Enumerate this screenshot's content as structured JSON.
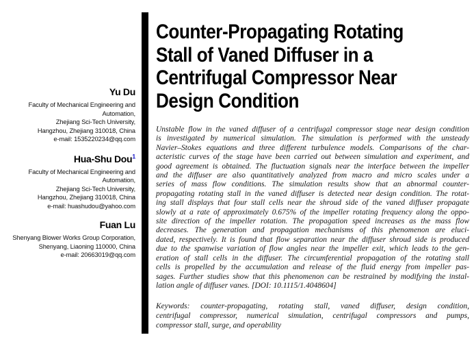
{
  "colors": {
    "text": "#121212",
    "divider_bar": "#000000",
    "footnote_marker": "#2222cc"
  },
  "authors": [
    {
      "name": "Yu Du",
      "affiliation_lines": [
        "Faculty of Mechanical Engineering and",
        "Automation,",
        "Zhejiang Sci-Tech University,",
        "Hangzhou, Zhejiang 310018, China",
        "e-mail: 1535220234@qq.com"
      ]
    },
    {
      "name": "Hua-Shu Dou",
      "superscript": "1",
      "affiliation_lines": [
        "Faculty of Mechanical Engineering and",
        "Automation,",
        "Zhejiang Sci-Tech University,",
        "Hangzhou, Zhejiang 310018, China",
        "e-mail: huashudou@yahoo.com"
      ]
    },
    {
      "name": "Fuan Lu",
      "affiliation_lines": [
        "Shenyang Blower Works Group Corporation,",
        "Shenyang, Liaoning 110000, China",
        "e-mail: 20663019@qq.com"
      ]
    }
  ],
  "title": {
    "lines": [
      "Counter-Propagating Rotating",
      "Stall of Vaned Diffuser in a",
      "Centrifugal Compressor Near",
      "Design Condition"
    ]
  },
  "abstract": {
    "lines": [
      "Unstable flow in the vaned diffuser of a centrifugal compressor stage near design condition",
      "is investigated by numerical simulation. The simulation is performed with the unsteady",
      "Navier–Stokes equations and three different turbulence models. Comparisons of the char-",
      "acteristic curves of the stage have been carried out between simulation and experiment, and",
      "good agreement is obtained. The fluctuation signals near the interface between the impeller",
      "and the diffuser are also quantitatively analyzed from macro and micro scales under a",
      "series of mass flow conditions. The simulation results show that an abnormal counter-",
      "propagating rotating stall in the vaned diffuser is detected near design condition. The rotat-",
      "ing stall displays that four stall cells near the shroud side of the vaned diffuser propagate",
      "slowly at a rate of approximately 0.675% of the impeller rotating frequency along the oppo-",
      "site direction of the impeller rotation. The propagation speed increases as the mass flow",
      "decreases. The generation and propagation mechanisms of this phenomenon are eluci-",
      "dated, respectively. It is found that flow separation near the diffuser shroud side is produced",
      "due to the spanwise variation of flow angles near the impeller exit, which leads to the gen-",
      "eration of stall cells in the diffuser. The circumferential propagation of the rotating stall",
      "cells is propelled by the accumulation and release of the fluid energy from impeller pas-",
      "sages. Further studies show that this phenomenon can be restrained by modifying the instal-",
      "lation angle of diffuser vanes. [DOI: 10.1115/1.4048604]"
    ],
    "doi": "10.1115/1.4048604"
  },
  "keywords": {
    "lines": [
      "Keywords: counter-propagating, rotating stall, vaned diffuser, design condition,",
      "centrifugal compressor, numerical simulation, centrifugal compressors and pumps,",
      "compressor stall, surge, and operability"
    ]
  }
}
